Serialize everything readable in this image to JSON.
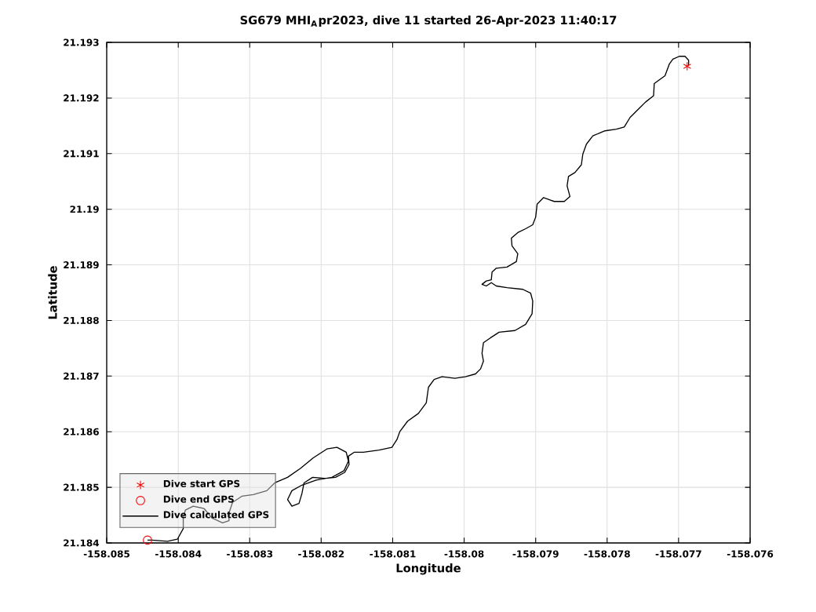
{
  "chart_data": {
    "type": "line",
    "title": "SG679 MHI$_{A}$pr2023, dive 11 started 26-Apr-2023 11:40:17",
    "xlabel": "Longitude",
    "ylabel": "Latitude",
    "xlim": [
      -158.085,
      -158.076
    ],
    "ylim": [
      21.184,
      21.193
    ],
    "xticks": [
      -158.085,
      -158.084,
      -158.083,
      -158.082,
      -158.081,
      -158.08,
      -158.079,
      -158.078,
      -158.077,
      -158.076
    ],
    "yticks": [
      21.184,
      21.185,
      21.186,
      21.187,
      21.188,
      21.189,
      21.19,
      21.191,
      21.192,
      21.193
    ],
    "grid": true,
    "legend": "bottom left",
    "series": [
      {
        "name": "Dive start GPS",
        "type": "scatter",
        "marker": "cross",
        "color": "#ff0000",
        "x": [
          -158.07688
        ],
        "values": [
          21.19257
        ]
      },
      {
        "name": "Dive end GPS",
        "type": "scatter",
        "marker": "circle",
        "color": "#ff0000",
        "x": [
          -158.08443
        ],
        "values": [
          21.18405
        ]
      },
      {
        "name": "Dive calculated GPS",
        "marker": "none",
        "line_style": "solid",
        "color": "#000000",
        "x": [
          -158.07686,
          -158.07686,
          -158.07691,
          -158.07699,
          -158.07708,
          -158.07713,
          -158.07719,
          -158.07734,
          -158.07735,
          -158.07746,
          -158.07757,
          -158.07768,
          -158.07776,
          -158.07787,
          -158.07803,
          -158.0782,
          -158.07829,
          -158.07834,
          -158.07836,
          -158.07845,
          -158.07854,
          -158.07856,
          -158.07852,
          -158.0786,
          -158.07874,
          -158.07889,
          -158.07898,
          -158.079,
          -158.07904,
          -158.07914,
          -158.07925,
          -158.07934,
          -158.07933,
          -158.07925,
          -158.07927,
          -158.0794,
          -158.07955,
          -158.07961,
          -158.07962,
          -158.07969,
          -158.07975,
          -158.07969,
          -158.07962,
          -158.07955,
          -158.0794,
          -158.07918,
          -158.07907,
          -158.07904,
          -158.07905,
          -158.07914,
          -158.07929,
          -158.07951,
          -158.07963,
          -158.07973,
          -158.07975,
          -158.07973,
          -158.07977,
          -158.07984,
          -158.07998,
          -158.08013,
          -158.08031,
          -158.08042,
          -158.0805,
          -158.08053,
          -158.08064,
          -158.08079,
          -158.0809,
          -158.08094,
          -158.08101,
          -158.08119,
          -158.08141,
          -158.08154,
          -158.08162,
          -158.08161,
          -158.08167,
          -158.0818,
          -158.08196,
          -158.08212,
          -158.08224,
          -158.08227,
          -158.08231,
          -158.08241,
          -158.08247,
          -158.08241,
          -158.08227,
          -158.08207,
          -158.08185,
          -158.08168,
          -158.08162,
          -158.08165,
          -158.08178,
          -158.08192,
          -158.08211,
          -158.08229,
          -158.08247,
          -158.08265,
          -158.08276,
          -158.08295,
          -158.08311,
          -158.08324,
          -158.08329,
          -158.08329,
          -158.08338,
          -158.08353,
          -158.08364,
          -158.08379,
          -158.0839,
          -158.08393,
          -158.08393,
          -158.08401,
          -158.08415,
          -158.08437,
          -158.08443
        ],
        "values": [
          21.19259,
          21.19268,
          21.19275,
          21.19275,
          21.1927,
          21.19261,
          21.1924,
          21.19226,
          21.19204,
          21.19193,
          21.19179,
          21.19165,
          21.19148,
          21.19144,
          21.19141,
          21.19132,
          21.19117,
          21.19099,
          21.1908,
          21.19066,
          21.19059,
          21.19042,
          21.19023,
          21.19014,
          21.19014,
          21.19021,
          21.19009,
          21.18986,
          21.18972,
          21.18965,
          21.18958,
          21.18948,
          21.18934,
          21.1892,
          21.18906,
          21.18896,
          21.18894,
          21.18887,
          21.18873,
          21.18871,
          21.18865,
          21.18862,
          21.18868,
          21.18862,
          21.18859,
          21.18856,
          21.18849,
          21.18835,
          21.18812,
          21.18793,
          21.18782,
          21.18779,
          21.18769,
          21.1876,
          21.18741,
          21.18727,
          21.18713,
          21.18704,
          21.18699,
          21.18696,
          21.18699,
          21.18694,
          21.1868,
          21.18652,
          21.18633,
          21.18619,
          21.186,
          21.18586,
          21.18572,
          21.18567,
          21.18563,
          21.18563,
          21.18556,
          21.18541,
          21.18527,
          21.18518,
          21.18516,
          21.18518,
          21.18508,
          21.18489,
          21.18471,
          21.18466,
          21.18478,
          21.18494,
          21.18504,
          21.18513,
          21.18518,
          21.1853,
          21.18547,
          21.18563,
          21.18572,
          21.18569,
          21.18553,
          21.18534,
          21.18518,
          21.18508,
          21.18494,
          21.18487,
          21.18484,
          21.18473,
          21.18454,
          21.1844,
          21.18436,
          21.18445,
          21.18462,
          21.18466,
          21.18459,
          21.18445,
          21.18426,
          21.18407,
          21.18403,
          21.18405,
          21.18405
        ]
      }
    ]
  }
}
